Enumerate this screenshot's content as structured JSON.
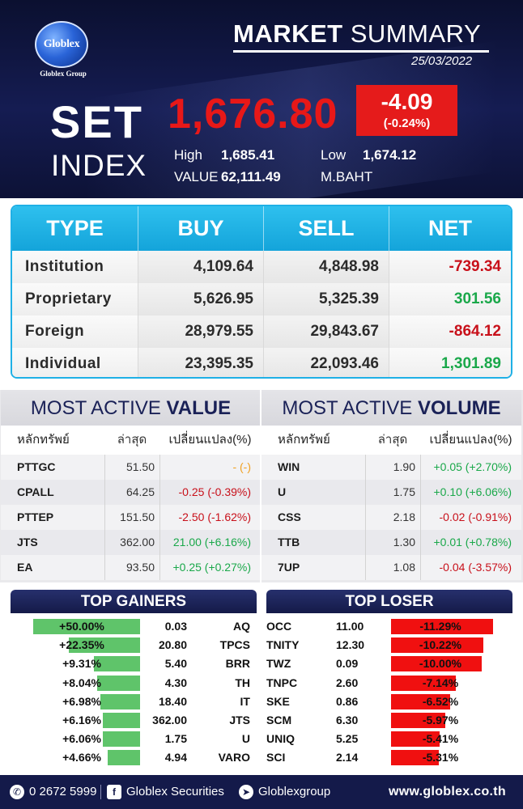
{
  "header": {
    "logo_text": "Globlex",
    "logo_sub": "Globlex Group",
    "title_bold": "MARKET",
    "title_light": "SUMMARY",
    "date": "25/03/2022",
    "set_label": "SET",
    "index_label": "INDEX",
    "index_value": "1,676.80",
    "change_points": "-4.09",
    "change_percent": "(-0.24%)",
    "high_label": "High",
    "high_value": "1,685.41",
    "low_label": "Low",
    "low_value": "1,674.12",
    "value_label": "VALUE",
    "value_amount": "62,111.49",
    "value_unit": "M.BAHT"
  },
  "investor_table": {
    "headers": [
      "TYPE",
      "BUY",
      "SELL",
      "NET"
    ],
    "rows": [
      {
        "type": "Institution",
        "buy": "4,109.64",
        "sell": "4,848.98",
        "net": "-739.34",
        "net_sign": "neg"
      },
      {
        "type": "Proprietary",
        "buy": "5,626.95",
        "sell": "5,325.39",
        "net": "301.56",
        "net_sign": "pos"
      },
      {
        "type": "Foreign",
        "buy": "28,979.55",
        "sell": "29,843.67",
        "net": "-864.12",
        "net_sign": "neg"
      },
      {
        "type": "Individual",
        "buy": "23,395.35",
        "sell": "22,093.46",
        "net": "1,301.89",
        "net_sign": "pos"
      }
    ]
  },
  "most_active_value": {
    "title_light": "MOST ACTIVE",
    "title_bold": "VALUE",
    "headers": [
      "หลักทรัพย์",
      "ล่าสุด",
      "เปลี่ยนแปลง(%)"
    ],
    "rows": [
      {
        "symbol": "PTTGC",
        "last": "51.50",
        "change": "- (-)",
        "dir": "unch"
      },
      {
        "symbol": "CPALL",
        "last": "64.25",
        "change": "-0.25 (-0.39%)",
        "dir": "neg"
      },
      {
        "symbol": "PTTEP",
        "last": "151.50",
        "change": "-2.50 (-1.62%)",
        "dir": "neg"
      },
      {
        "symbol": "JTS",
        "last": "362.00",
        "change": "21.00 (+6.16%)",
        "dir": "pos"
      },
      {
        "symbol": "EA",
        "last": "93.50",
        "change": "+0.25 (+0.27%)",
        "dir": "pos"
      }
    ]
  },
  "most_active_volume": {
    "title_light": "MOST ACTIVE",
    "title_bold": "VOLUME",
    "headers": [
      "หลักทรัพย์",
      "ล่าสุด",
      "เปลี่ยนแปลง(%)"
    ],
    "rows": [
      {
        "symbol": "WIN",
        "last": "1.90",
        "change": "+0.05 (+2.70%)",
        "dir": "pos"
      },
      {
        "symbol": "U",
        "last": "1.75",
        "change": "+0.10 (+6.06%)",
        "dir": "pos"
      },
      {
        "symbol": "CSS",
        "last": "2.18",
        "change": "-0.02 (-0.91%)",
        "dir": "neg"
      },
      {
        "symbol": "TTB",
        "last": "1.30",
        "change": "+0.01 (+0.78%)",
        "dir": "pos"
      },
      {
        "symbol": "7UP",
        "last": "1.08",
        "change": "-0.04 (-3.57%)",
        "dir": "neg"
      }
    ]
  },
  "top_gainers": {
    "title": "TOP GAINERS",
    "rows": [
      {
        "pct_label": "+50.00%",
        "pct": 50.0,
        "last": "0.03",
        "symbol": "AQ"
      },
      {
        "pct_label": "+22.35%",
        "pct": 22.35,
        "last": "20.80",
        "symbol": "TPCS"
      },
      {
        "pct_label": "+9.31%",
        "pct": 9.31,
        "last": "5.40",
        "symbol": "BRR"
      },
      {
        "pct_label": "+8.04%",
        "pct": 8.04,
        "last": "4.30",
        "symbol": "TH"
      },
      {
        "pct_label": "+6.98%",
        "pct": 6.98,
        "last": "18.40",
        "symbol": "IT"
      },
      {
        "pct_label": "+6.16%",
        "pct": 6.16,
        "last": "362.00",
        "symbol": "JTS"
      },
      {
        "pct_label": "+6.06%",
        "pct": 6.06,
        "last": "1.75",
        "symbol": "U"
      },
      {
        "pct_label": "+4.66%",
        "pct": 4.66,
        "last": "4.94",
        "symbol": "VARO"
      }
    ]
  },
  "top_loser": {
    "title": "TOP LOSER",
    "rows": [
      {
        "symbol": "OCC",
        "last": "11.00",
        "pct_label": "-11.29%",
        "pct": 11.29
      },
      {
        "symbol": "TNITY",
        "last": "12.30",
        "pct_label": "-10.22%",
        "pct": 10.22
      },
      {
        "symbol": "TWZ",
        "last": "0.09",
        "pct_label": "-10.00%",
        "pct": 10.0
      },
      {
        "symbol": "TNPC",
        "last": "2.60",
        "pct_label": "-7.14%",
        "pct": 7.14
      },
      {
        "symbol": "SKE",
        "last": "0.86",
        "pct_label": "-6.52%",
        "pct": 6.52
      },
      {
        "symbol": "SCM",
        "last": "6.30",
        "pct_label": "-5.97%",
        "pct": 5.97
      },
      {
        "symbol": "UNIQ",
        "last": "5.25",
        "pct_label": "-5.41%",
        "pct": 5.41
      },
      {
        "symbol": "SCI",
        "last": "2.14",
        "pct_label": "-5.31%",
        "pct": 5.31
      }
    ]
  },
  "footer": {
    "phone": "0 2672 5999",
    "facebook": "Globlex Securities",
    "telegram": "Globlexgroup",
    "website": "www.globlex.co.th"
  },
  "colors": {
    "positive": "#1aa84a",
    "negative": "#c8101a",
    "unchanged": "#f0a020",
    "gainer_bar": "#5fc46a",
    "loser_bar": "#f01010"
  }
}
